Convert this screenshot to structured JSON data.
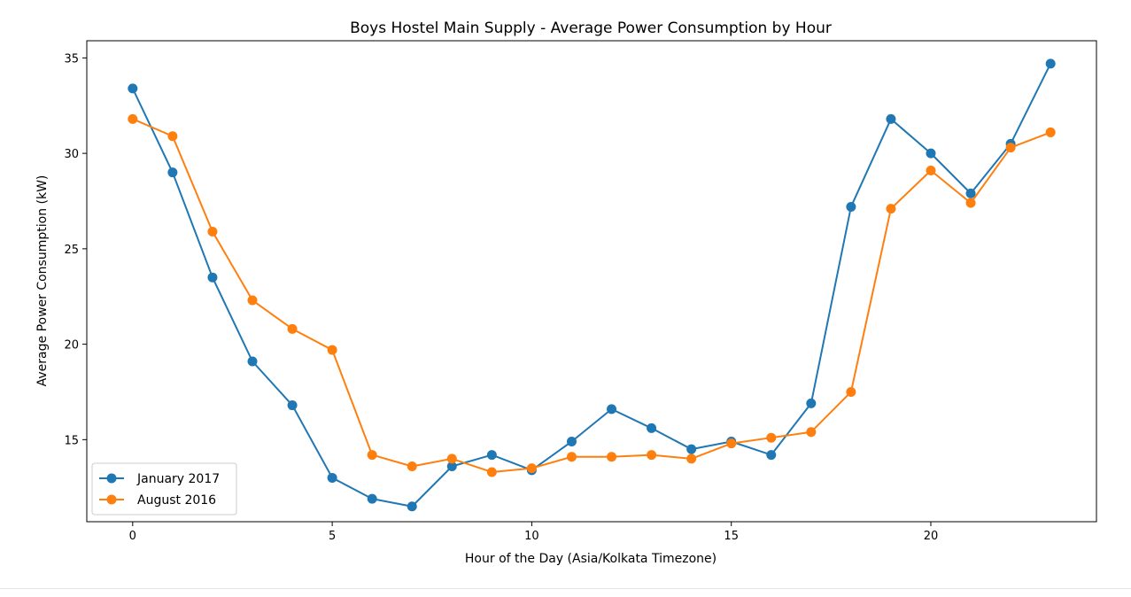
{
  "chart_data": {
    "type": "line",
    "title": "Boys Hostel Main Supply - Average Power Consumption by Hour",
    "xlabel": "Hour of the Day (Asia/Kolkata Timezone)",
    "ylabel": "Average Power Consumption (kW)",
    "xlim": [
      -1.15,
      24.15
    ],
    "ylim": [
      10.7,
      35.9
    ],
    "xticks": [
      0,
      5,
      10,
      15,
      20
    ],
    "yticks": [
      15,
      20,
      25,
      30,
      35
    ],
    "grid": false,
    "legend_position": "lower-left",
    "x": [
      0,
      1,
      2,
      3,
      4,
      5,
      6,
      7,
      8,
      9,
      10,
      11,
      12,
      13,
      14,
      15,
      16,
      17,
      18,
      19,
      20,
      21,
      22,
      23
    ],
    "series": [
      {
        "name": "January 2017",
        "color": "#1f77b4",
        "marker": "circle",
        "values": [
          33.4,
          29.0,
          23.5,
          19.1,
          16.8,
          13.0,
          11.9,
          11.5,
          13.6,
          14.2,
          13.4,
          14.9,
          16.6,
          15.6,
          14.5,
          14.9,
          14.2,
          16.9,
          27.2,
          31.8,
          30.0,
          27.9,
          30.5,
          34.7
        ]
      },
      {
        "name": "August 2016",
        "color": "#ff7f0e",
        "marker": "circle",
        "values": [
          31.8,
          30.9,
          25.9,
          22.3,
          20.8,
          19.7,
          14.2,
          13.6,
          14.0,
          13.3,
          13.5,
          14.1,
          14.1,
          14.2,
          14.0,
          14.8,
          15.1,
          15.4,
          17.5,
          27.1,
          29.1,
          27.4,
          30.3,
          31.1
        ]
      }
    ]
  }
}
